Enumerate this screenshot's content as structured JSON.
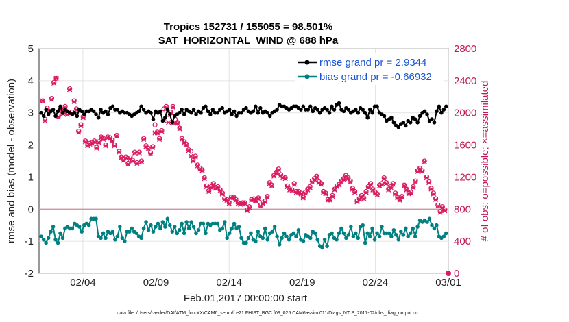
{
  "chart_data": {
    "type": "line",
    "title_line1": "Tropics 152731 / 155055 = 98.501%",
    "title_line2": "SAT_HORIZONTAL_WIND @ 688 hPa",
    "xlabel": "Feb.01,2017 00:00:00 start",
    "ylabel_left": "rmse and bias (model - observation)",
    "ylabel_right": "# of obs: o=possible; ×=assimilated",
    "xlim_days": [
      0,
      28
    ],
    "ylim_left": [
      -2,
      5
    ],
    "ylim_right": [
      0,
      2800
    ],
    "left_ticks": [
      "-2",
      "-1",
      "0",
      "1",
      "2",
      "3",
      "4",
      "5"
    ],
    "right_ticks": [
      "0",
      "400",
      "800",
      "1200",
      "1600",
      "2000",
      "2400",
      "2800"
    ],
    "x_ticks": [
      {
        "day": 3,
        "label": "02/04"
      },
      {
        "day": 8,
        "label": "02/09"
      },
      {
        "day": 13,
        "label": "02/14"
      },
      {
        "day": 18,
        "label": "02/19"
      },
      {
        "day": 23,
        "label": "02/24"
      },
      {
        "day": 28,
        "label": "03/01"
      }
    ],
    "footnote": "data file: /Users/raeder/DAI/ATM_forcXX/CAM6_setup/f.e21.FHIST_BGC.f09_025.CAM6assim.011/Diags_NTrS_2017-02/obs_diag_output.nc",
    "colors": {
      "rmse": "#000000",
      "bias": "#008080",
      "obs": "#d81b60",
      "zero_line": "#c98a9a",
      "grid": "#dcdcdc",
      "legend_text": "#1a53d6"
    },
    "series": [
      {
        "name": "rmse grand pr = 2.9344",
        "values": [
          3.0,
          2.9,
          3.1,
          2.95,
          3.05,
          3.1,
          2.9,
          3.05,
          3.2,
          3.0,
          3.1,
          3.05,
          3.0,
          2.95,
          3.0,
          2.9,
          3.1,
          3.05,
          2.95,
          3.05,
          3.05,
          3.1,
          3.05,
          2.95,
          2.85,
          3.1,
          3.0,
          3.05,
          2.95,
          3.15,
          3.2,
          3.1,
          3.1,
          3.0,
          3.05,
          3.0,
          3.0,
          2.95,
          2.9,
          2.95,
          3.0,
          3.05,
          3.2,
          3.1,
          3.0,
          3.05,
          3.0,
          2.8,
          3.05,
          3.0,
          3.05,
          2.75,
          2.85,
          3.1,
          2.95,
          2.7,
          2.9,
          2.95,
          3.0,
          3.1,
          2.95,
          3.1,
          3.05,
          3.0,
          3.1,
          2.95,
          3.05,
          3.0,
          3.15,
          3.2,
          3.05,
          2.95,
          3.1,
          3.0,
          3.0,
          3.1,
          3.15,
          3.0,
          3.05,
          3.1,
          2.95,
          3.05,
          2.9,
          3.0,
          3.0,
          3.1,
          3.15,
          3.05,
          3.0,
          3.05,
          3.2,
          3.0,
          3.15,
          3.0,
          3.05,
          3.0,
          2.9,
          3.0,
          3.05,
          3.1,
          3.25,
          3.2,
          3.2,
          3.15,
          3.1,
          3.15,
          3.2,
          3.2,
          3.15,
          3.1,
          3.2,
          3.1,
          3.1,
          3.2,
          3.05,
          3.15,
          3.1,
          3.0,
          3.1,
          3.15,
          3.1,
          3.0,
          3.2,
          3.1,
          3.25,
          3.3,
          3.1,
          3.05,
          3.15,
          3.1,
          3.0,
          3.05,
          3.1,
          3.0,
          3.15,
          3.1,
          3.0,
          2.85,
          3.1,
          3.0,
          3.2,
          3.2,
          3.0,
          2.95,
          2.9,
          2.75,
          2.8,
          2.85,
          2.7,
          2.6,
          2.55,
          2.65,
          2.7,
          2.6,
          2.75,
          2.7,
          2.85,
          2.8,
          2.7,
          2.9,
          3.0,
          3.05,
          2.95,
          2.75,
          2.8,
          2.7,
          3.05,
          3.2,
          3.0,
          3.1,
          3.2
        ]
      },
      {
        "name": "bias grand pr = -0.66932",
        "values": [
          -0.85,
          -0.95,
          -1.05,
          -0.9,
          -0.7,
          -0.55,
          -0.95,
          -1.05,
          -0.75,
          -0.9,
          -0.6,
          -0.55,
          -0.6,
          -0.6,
          -0.45,
          -0.5,
          -0.55,
          -0.7,
          -0.5,
          -0.45,
          -0.5,
          -0.3,
          -0.3,
          -0.3,
          -0.85,
          -0.9,
          -0.75,
          -0.9,
          -0.7,
          -0.75,
          -0.7,
          -0.95,
          -0.85,
          -0.55,
          -0.9,
          -1.0,
          -0.7,
          -0.7,
          -0.6,
          -0.7,
          -0.75,
          -0.85,
          -0.9,
          -0.6,
          -0.4,
          -0.65,
          -0.5,
          -0.7,
          -0.55,
          -0.45,
          -0.6,
          -0.4,
          -0.55,
          -0.3,
          -0.5,
          -0.7,
          -0.55,
          -0.75,
          -0.65,
          -0.45,
          -0.75,
          -0.4,
          -0.6,
          -0.4,
          -0.55,
          -0.75,
          -0.65,
          -0.45,
          -0.45,
          -0.75,
          -0.45,
          -0.5,
          -0.45,
          -0.45,
          -0.45,
          -0.65,
          -0.6,
          -0.4,
          -0.9,
          -0.75,
          -0.6,
          -0.45,
          -0.6,
          -0.55,
          -0.9,
          -1.05,
          -1.05,
          -0.9,
          -0.75,
          -0.95,
          -1.0,
          -0.7,
          -0.85,
          -0.9,
          -0.6,
          -0.95,
          -0.75,
          -0.7,
          -0.55,
          -0.85,
          -1.1,
          -0.9,
          -0.75,
          -0.85,
          -0.95,
          -0.8,
          -0.75,
          -0.85,
          -0.65,
          -0.95,
          -1.0,
          -0.8,
          -0.85,
          -0.9,
          -0.7,
          -0.75,
          -0.95,
          -1.15,
          -1.2,
          -0.95,
          -1.15,
          -0.8,
          -0.75,
          -0.9,
          -0.95,
          -0.75,
          -0.6,
          -0.75,
          -0.9,
          -0.8,
          -0.55,
          -0.85,
          -0.75,
          -0.9,
          -0.55,
          -0.5,
          -1.05,
          -0.75,
          -0.85,
          -0.6,
          -0.95,
          -0.75,
          -0.85,
          -0.55,
          -0.75,
          -0.75,
          -0.75,
          -0.85,
          -0.65,
          -0.8,
          -0.95,
          -0.7,
          -0.8,
          -0.6,
          -0.85,
          -0.75,
          -0.6,
          -0.85,
          -0.55,
          -0.35,
          -0.4,
          -0.35,
          -0.4,
          -0.3,
          -0.5,
          -0.6,
          -0.5,
          -0.85,
          -0.9,
          -0.85,
          -0.75
        ]
      }
    ],
    "obs_possible": [
      2150,
      1920,
      2060,
      2020,
      2180,
      2380,
      2430,
      1960,
      2050,
      2000,
      2080,
      1990,
      2300,
      2010,
      2150,
      2050,
      1770,
      1850,
      1950,
      1650,
      1600,
      1620,
      1630,
      1650,
      1570,
      1640,
      1700,
      1680,
      1600,
      1700,
      1690,
      1660,
      1600,
      1720,
      1520,
      1450,
      1420,
      1450,
      1370,
      1440,
      1410,
      1510,
      1380,
      1510,
      1400,
      1680,
      1590,
      1560,
      1500,
      1580,
      1850,
      1760,
      1680,
      1780,
      2050,
      2080,
      1980,
      2010,
      2080,
      1920,
      1880,
      1810,
      1680,
      1640,
      1610,
      1540,
      1520,
      1410,
      1460,
      1350,
      1310,
      1290,
      1190,
      1090,
      1030,
      1080,
      1120,
      1070,
      1080,
      1040,
      1000,
      930,
      920,
      880,
      950,
      950,
      920,
      880,
      870,
      880,
      880,
      790,
      830,
      920,
      930,
      910,
      940,
      850,
      880,
      900,
      960,
      1130,
      1100,
      1220,
      1260,
      1300,
      1230,
      1200,
      1190,
      1090,
      1050,
      1040,
      1120,
      1020,
      1020,
      1000,
      950,
      1010,
      1050,
      1080,
      1150,
      1180,
      1210,
      1140,
      1120,
      1020,
      1000,
      920,
      920,
      970,
      1050,
      1090,
      1110,
      1150,
      1180,
      1220,
      1190,
      1150,
      1060,
      1020,
      900,
      930,
      970,
      940,
      1020,
      1080,
      1120,
      1050,
      1010,
      990,
      1100,
      1120,
      1190,
      1130,
      1050,
      1080,
      1120,
      1000,
      950,
      920,
      960,
      1100,
      1050,
      1000,
      1010,
      1080,
      1150,
      1280,
      1310,
      1280,
      1400,
      1200,
      1140,
      1060,
      1000,
      930,
      850,
      770,
      830,
      790
    ],
    "obs_assimilated": [
      2150,
      1900,
      2050,
      2010,
      2170,
      2370,
      2430,
      1950,
      2040,
      1990,
      2070,
      1980,
      2290,
      2000,
      2140,
      2040,
      1760,
      1840,
      1940,
      1640,
      1590,
      1610,
      1620,
      1640,
      1560,
      1630,
      1690,
      1670,
      1590,
      1690,
      1680,
      1650,
      1590,
      1710,
      1510,
      1440,
      1410,
      1440,
      1360,
      1430,
      1400,
      1500,
      1370,
      1500,
      1390,
      1670,
      1580,
      1550,
      1490,
      1570,
      1750,
      1750,
      1670,
      1770,
      1900,
      2070,
      1880,
      2000,
      2070,
      1870,
      1870,
      1800,
      1670,
      1630,
      1600,
      1530,
      1460,
      1400,
      1450,
      1340,
      1300,
      1280,
      1180,
      1080,
      1020,
      1070,
      1110,
      1060,
      1070,
      1030,
      990,
      920,
      910,
      870,
      940,
      940,
      910,
      870,
      860,
      870,
      870,
      780,
      820,
      910,
      920,
      900,
      930,
      840,
      870,
      890,
      950,
      1120,
      1090,
      1210,
      1250,
      1290,
      1220,
      1190,
      1180,
      1080,
      1040,
      1030,
      1110,
      1010,
      1010,
      990,
      940,
      1000,
      1040,
      1070,
      1140,
      1170,
      1200,
      1130,
      1110,
      1010,
      990,
      910,
      910,
      960,
      1040,
      1080,
      1100,
      1140,
      1170,
      1210,
      1180,
      1140,
      1050,
      1010,
      890,
      920,
      960,
      930,
      1010,
      1070,
      1110,
      1040,
      1000,
      980,
      1090,
      1110,
      1180,
      1120,
      1040,
      1070,
      1110,
      990,
      940,
      910,
      950,
      1090,
      1040,
      990,
      1000,
      1070,
      1140,
      1270,
      1300,
      1270,
      1390,
      1190,
      1130,
      1050,
      990,
      920,
      840,
      760,
      820,
      780
    ],
    "obs_last_possible": 0,
    "legend": {
      "placement": "top-right",
      "entries": [
        "rmse grand pr = 2.9344",
        "bias grand pr = -0.66932"
      ]
    }
  }
}
